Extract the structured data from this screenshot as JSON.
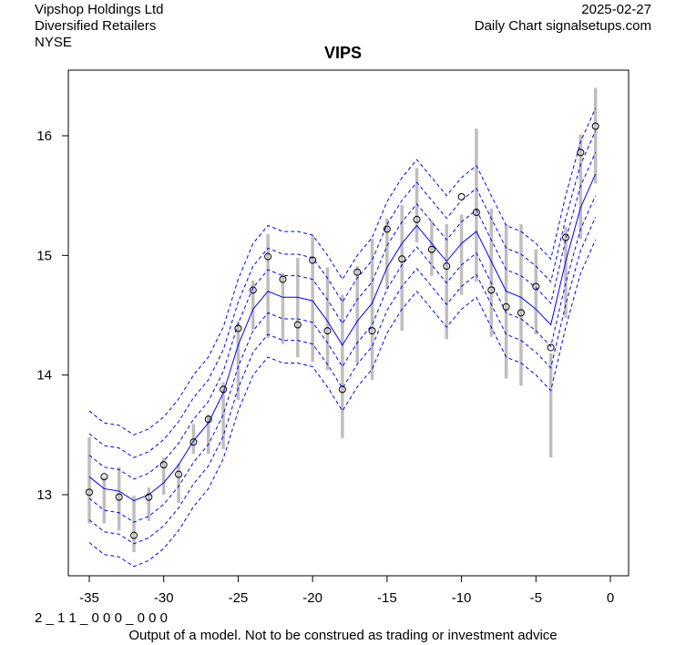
{
  "header": {
    "company": "Vipshop Holdings Ltd",
    "sector": "Diversified Retailers",
    "exchange": "NYSE",
    "date": "2025-02-27",
    "source": "Daily Chart signalsetups.com"
  },
  "footer": {
    "code": "2 _ 1 1 _ 0 0 0 _ 0 0 0",
    "disclaimer": "Output of a model. Not to be construed as trading or investment advice"
  },
  "chart_data": {
    "type": "line",
    "title": "VIPS",
    "xlabel": "",
    "ylabel": "",
    "xlim": [
      -36.5,
      0.5
    ],
    "ylim": [
      12.35,
      16.55
    ],
    "x_ticks": [
      -35,
      -30,
      -25,
      -20,
      -15,
      -10,
      -5,
      0
    ],
    "y_ticks": [
      13,
      14,
      15,
      16
    ],
    "x": [
      -35,
      -34,
      -33,
      -32,
      -31,
      -30,
      -29,
      -28,
      -27,
      -26,
      -25,
      -24,
      -23,
      -22,
      -21,
      -20,
      -19,
      -18,
      -17,
      -16,
      -15,
      -14,
      -13,
      -12,
      -11,
      -10,
      -9,
      -8,
      -7,
      -6,
      -5,
      -4,
      -3,
      -2,
      -1
    ],
    "close": [
      13.02,
      13.15,
      12.98,
      12.66,
      12.98,
      13.25,
      13.17,
      13.44,
      13.63,
      13.88,
      14.39,
      14.71,
      14.99,
      14.8,
      14.42,
      14.96,
      14.37,
      13.88,
      14.86,
      14.37,
      15.22,
      14.97,
      15.3,
      15.05,
      14.91,
      15.49,
      15.36,
      14.71,
      14.57,
      14.52,
      14.74,
      14.23,
      15.15,
      15.86,
      16.08
    ],
    "high": [
      13.48,
      13.15,
      13.23,
      12.99,
      13.06,
      13.31,
      13.26,
      13.59,
      13.67,
      13.94,
      14.45,
      14.79,
      15.18,
      14.85,
      14.98,
      15.17,
      14.9,
      14.67,
      14.91,
      15.14,
      15.31,
      15.42,
      15.73,
      15.29,
      15.26,
      15.34,
      16.06,
      15.39,
      15.26,
      15.26,
      15.05,
      14.18,
      15.24,
      16.01,
      16.4
    ],
    "low": [
      12.76,
      12.76,
      12.7,
      12.52,
      12.78,
      13.0,
      12.93,
      13.34,
      13.34,
      13.38,
      13.79,
      14.38,
      14.31,
      14.26,
      14.15,
      14.11,
      14.04,
      13.47,
      14.1,
      13.96,
      14.72,
      14.37,
      15.11,
      14.83,
      14.3,
      14.67,
      14.78,
      14.32,
      13.97,
      13.91,
      14.34,
      13.31,
      14.48,
      15.14,
      15.6
    ],
    "model_center": [
      13.15,
      13.05,
      13.03,
      12.95,
      13.0,
      13.1,
      13.25,
      13.45,
      13.6,
      13.85,
      14.25,
      14.55,
      14.7,
      14.65,
      14.65,
      14.62,
      14.45,
      14.25,
      14.45,
      14.6,
      14.9,
      15.1,
      15.25,
      15.1,
      14.95,
      15.1,
      15.2,
      14.95,
      14.7,
      14.65,
      14.55,
      14.42,
      14.95,
      15.4,
      15.68
    ],
    "band_offsets": [
      0.18,
      0.36,
      0.55
    ],
    "colors": {
      "model": "#0000ff",
      "range": "#bebebe",
      "point": "#000000"
    }
  }
}
